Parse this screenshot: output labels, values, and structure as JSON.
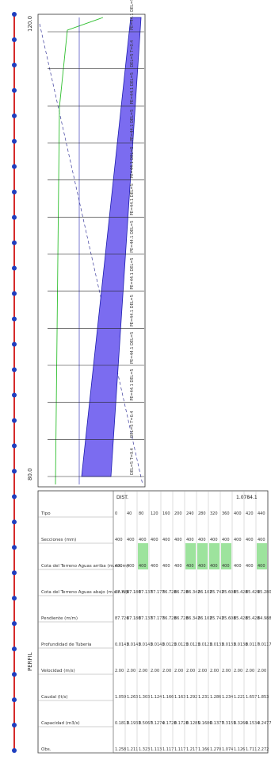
{
  "side_label": "PERFIL",
  "axis": {
    "top_value": "120.0",
    "bottom_value": "80.0"
  },
  "distance_header": "DIST.",
  "row_labels": [
    "Tipo",
    "Secciones (mm)",
    "Cota del Terreno Aguas arriba (m.s.n.m)",
    "Cota del Terreno Aguas abajo (m.s.n.m)",
    "Pendiente (m/m)",
    "Profundidad de Tuberia",
    "Velocidad (m/s)",
    "Caudal (lt/s)",
    "Capacidad (m3/s)",
    "Obs."
  ],
  "sections": [
    {
      "dist": "0",
      "type": "400",
      "diam": "400",
      "cot_up": "87.726",
      "cot_dn": "87.726",
      "slope": "0.0143",
      "depth": "2.00",
      "vel": "1.059",
      "flow": "0.1813",
      "cap": "1.258",
      "highlight": false
    },
    {
      "dist": "40",
      "type": "400",
      "diam": "400",
      "cot_up": "87.180",
      "cot_dn": "87.180",
      "slope": "0.0143",
      "depth": "2.00",
      "vel": "1.263",
      "flow": "0.1933",
      "cap": "1.211",
      "highlight": false
    },
    {
      "dist": "80",
      "type": "400",
      "diam": "400",
      "cot_up": "87.137",
      "cot_dn": "87.137",
      "slope": "0.0143",
      "depth": "2.00",
      "vel": "1.303",
      "flow": "0.5067",
      "cap": "1.323",
      "highlight": true
    },
    {
      "dist": "120",
      "type": "400",
      "diam": "400",
      "cot_up": "87.177",
      "cot_dn": "87.177",
      "slope": "0.0143",
      "depth": "2.00",
      "vel": "1.124",
      "flow": "0.1274",
      "cap": "1.113",
      "highlight": false
    },
    {
      "dist": "160",
      "type": "400",
      "diam": "400",
      "cot_up": "86.728",
      "cot_dn": "86.728",
      "slope": "0.0123",
      "depth": "2.00",
      "vel": "1.166",
      "flow": "0.1728",
      "cap": "1.117",
      "highlight": false
    },
    {
      "dist": "200",
      "type": "400",
      "diam": "400",
      "cot_up": "86.728",
      "cot_dn": "86.728",
      "slope": "0.0123",
      "depth": "2.00",
      "vel": "1.163",
      "flow": "0.1728",
      "cap": "1.117",
      "highlight": false
    },
    {
      "dist": "240",
      "type": "400",
      "diam": "400",
      "cot_up": "86.342",
      "cot_dn": "86.342",
      "slope": "0.0123",
      "depth": "2.00",
      "vel": "1.292",
      "flow": "0.1285",
      "cap": "1.217",
      "highlight": true
    },
    {
      "dist": "280",
      "type": "400",
      "diam": "400",
      "cot_up": "86.102",
      "cot_dn": "86.102",
      "slope": "0.0123",
      "depth": "2.00",
      "vel": "1.231",
      "flow": "0.1680",
      "cap": "1.166",
      "highlight": true
    },
    {
      "dist": "320",
      "type": "400",
      "diam": "400",
      "cot_up": "85.742",
      "cot_dn": "85.742",
      "slope": "0.0133",
      "depth": "2.00",
      "vel": "1.286",
      "flow": "0.1377",
      "cap": "1.270",
      "highlight": true
    },
    {
      "dist": "360",
      "type": "400",
      "diam": "400",
      "cot_up": "85.608",
      "cot_dn": "85.608",
      "slope": "0.0133",
      "depth": "2.00",
      "vel": "1.234",
      "flow": "0.3155",
      "cap": "1.074",
      "highlight": true
    },
    {
      "dist": "400",
      "type": "400",
      "diam": "400",
      "cot_up": "85.428",
      "cot_dn": "85.428",
      "slope": "0.0138",
      "depth": "2.00",
      "vel": "1.221",
      "flow": "0.3266",
      "cap": "1.126",
      "highlight": false
    },
    {
      "dist": "420",
      "type": "400",
      "diam": "400",
      "cot_up": "85.429",
      "cot_dn": "85.428",
      "slope": "0.0117",
      "depth": "2.00",
      "vel": "1.657",
      "flow": "0.1534",
      "cap": "1.711",
      "highlight": false
    },
    {
      "dist": "440",
      "type": "400",
      "diam": "400",
      "cot_up": "85.280",
      "cot_dn": "84.988",
      "slope": "0.0117",
      "depth": "2.00",
      "vel": "1.853",
      "flow": "0.2477",
      "cap": "2.272",
      "highlight": true
    }
  ],
  "extra_header": "1.0784.1",
  "manholes": [
    {
      "label": "PE=44.1 DEL=5"
    },
    {
      "label": "DEL=5 T=0.4"
    },
    {
      "label": "PE=44.1 DEL=5"
    },
    {
      "label": "PE=44.1 DEL=5"
    },
    {
      "label": "PE=44.1 DEL=5"
    },
    {
      "label": "PE=44.1 DEL=5"
    },
    {
      "label": "PE=44.1 DEL=5"
    },
    {
      "label": "PE=44.1 DEL=5"
    },
    {
      "label": "PE=44.1 DEL=5"
    },
    {
      "label": "PE=44.1 DEL=5"
    },
    {
      "label": "PE=44.1 DEL=5"
    },
    {
      "label": "DEL=5 T=0.4"
    },
    {
      "label": "DEL=5 T=0.4"
    }
  ],
  "colors": {
    "pipe": "#7b6cf0",
    "pipe_edge": "#1d1db0",
    "ground": "#2fbf2f",
    "axis_red": "#d52a2a",
    "node_blue": "#1f3fbf",
    "highlight": "#9de39d"
  }
}
